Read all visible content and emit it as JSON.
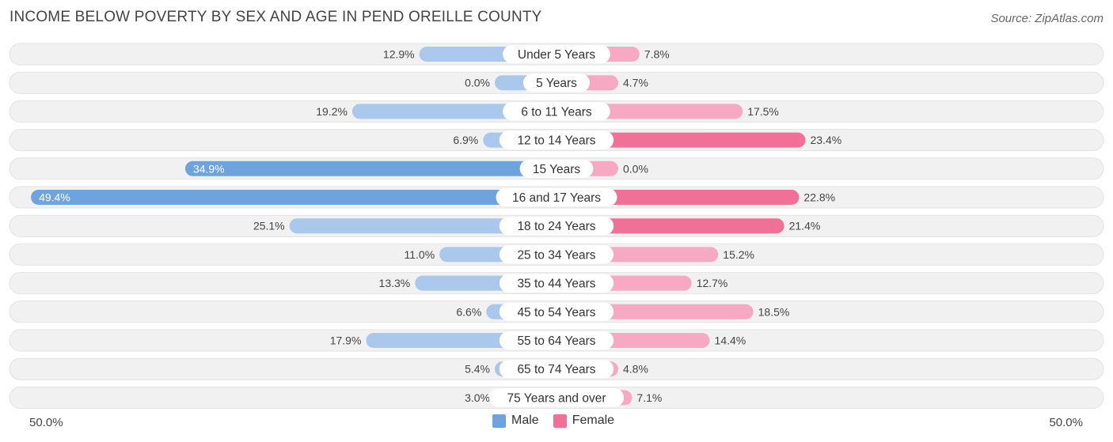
{
  "title": "INCOME BELOW POVERTY BY SEX AND AGE IN PEND OREILLE COUNTY",
  "source": "Source: ZipAtlas.com",
  "colors": {
    "male": "#6fa3de",
    "male_light": "#a9c8ec",
    "female": "#f07098",
    "female_light": "#f7a8c3",
    "row_bg": "#f0f0f0"
  },
  "chart_data": {
    "type": "bar",
    "orientation": "horizontal-diverging",
    "categories": [
      "Under 5 Years",
      "5 Years",
      "6 to 11 Years",
      "12 to 14 Years",
      "15 Years",
      "16 and 17 Years",
      "18 to 24 Years",
      "25 to 34 Years",
      "35 to 44 Years",
      "45 to 54 Years",
      "55 to 64 Years",
      "65 to 74 Years",
      "75 Years and over"
    ],
    "series": [
      {
        "name": "Male",
        "values": [
          12.9,
          0.0,
          19.2,
          6.9,
          34.9,
          49.4,
          25.1,
          11.0,
          13.3,
          6.6,
          17.9,
          5.4,
          3.0
        ]
      },
      {
        "name": "Female",
        "values": [
          7.8,
          4.7,
          17.5,
          23.4,
          0.0,
          22.8,
          21.4,
          15.2,
          12.7,
          18.5,
          14.4,
          4.8,
          7.1
        ]
      }
    ],
    "value_labels": {
      "male": [
        "12.9%",
        "0.0%",
        "19.2%",
        "6.9%",
        "34.9%",
        "49.4%",
        "25.1%",
        "11.0%",
        "13.3%",
        "6.6%",
        "17.9%",
        "5.4%",
        "3.0%"
      ],
      "female": [
        "7.8%",
        "4.7%",
        "17.5%",
        "23.4%",
        "0.0%",
        "22.8%",
        "21.4%",
        "15.2%",
        "12.7%",
        "18.5%",
        "14.4%",
        "4.8%",
        "7.1%"
      ]
    },
    "xlim": [
      -50,
      50
    ],
    "axis_left_label": "50.0%",
    "axis_right_label": "50.0%",
    "legend": [
      "Male",
      "Female"
    ],
    "legend_position": "bottom-center"
  }
}
